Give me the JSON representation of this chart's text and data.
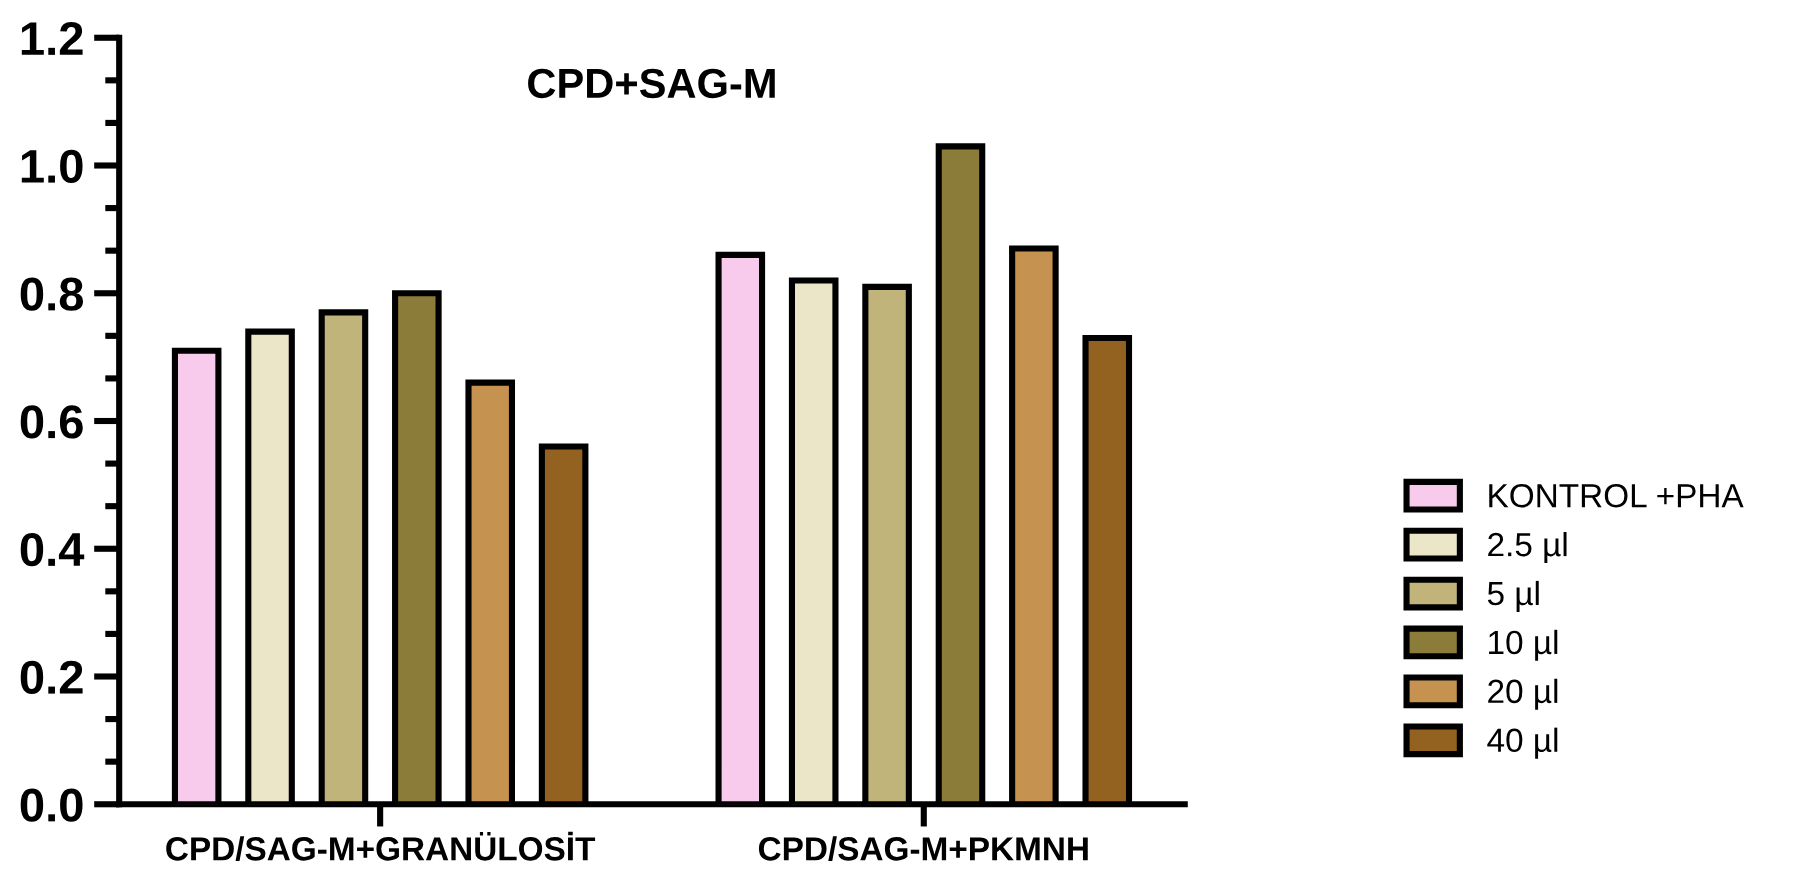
{
  "chart_data": {
    "type": "bar",
    "title": "CPD+SAG-M",
    "categories": [
      "CPD/SAG-M+GRANÜLOSİT",
      "CPD/SAG-M+PKMNH"
    ],
    "series": [
      {
        "name": "KONTROL +PHA",
        "color": "#f8cbec",
        "values": [
          0.71,
          0.86
        ]
      },
      {
        "name": "2.5 µl",
        "color": "#ece6c9",
        "values": [
          0.74,
          0.82
        ]
      },
      {
        "name": "5 µl",
        "color": "#c1b47b",
        "values": [
          0.77,
          0.81
        ]
      },
      {
        "name": "10 µl",
        "color": "#8c7c39",
        "values": [
          0.8,
          1.03
        ]
      },
      {
        "name": "20 µl",
        "color": "#c5924f",
        "values": [
          0.66,
          0.87
        ]
      },
      {
        "name": "40 µl",
        "color": "#936120",
        "values": [
          0.56,
          0.73
        ]
      }
    ],
    "ylim": [
      0,
      1.2
    ],
    "yticks": [
      {
        "value": 0,
        "label": "0.0"
      },
      0.2,
      0.4,
      0.6,
      0.8,
      {
        "value": 1,
        "label": "1.0"
      },
      1.2
    ],
    "grid": false,
    "legend": "right"
  }
}
